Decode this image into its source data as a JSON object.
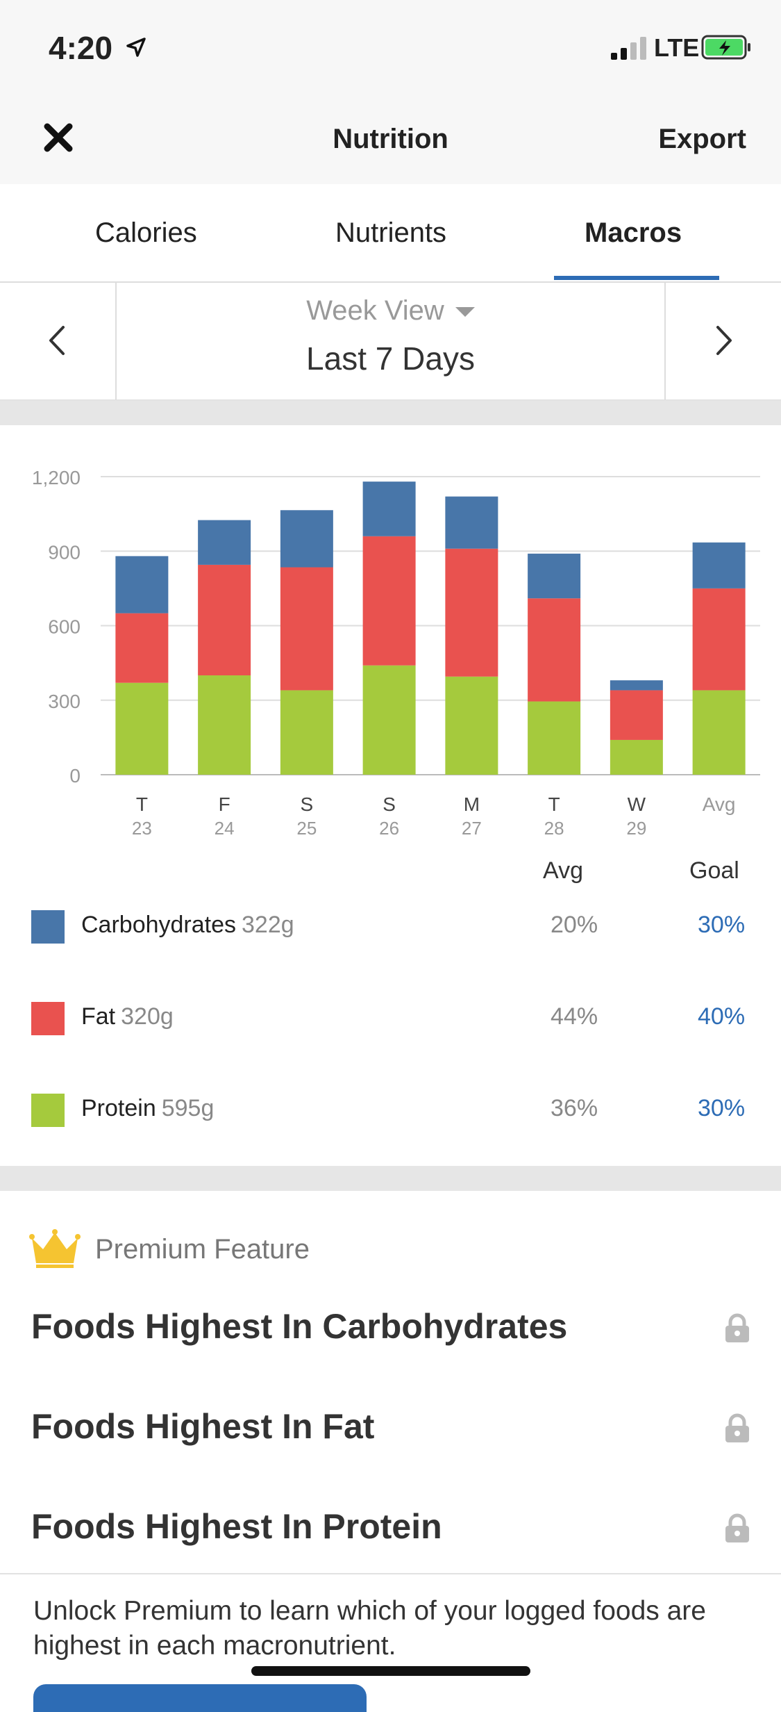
{
  "status_bar": {
    "time": "4:20",
    "network": "LTE"
  },
  "nav": {
    "title": "Nutrition",
    "export_label": "Export"
  },
  "tabs": [
    {
      "label": "Calories",
      "active": false
    },
    {
      "label": "Nutrients",
      "active": false
    },
    {
      "label": "Macros",
      "active": true
    }
  ],
  "range": {
    "view_label": "Week View",
    "range_label": "Last 7 Days"
  },
  "colors": {
    "carbs": "#4876a9",
    "fat": "#e9524f",
    "protein": "#a5ca3d",
    "accent": "#2d6cb5",
    "crown": "#f5c431"
  },
  "chart_data": {
    "type": "bar",
    "stacked": true,
    "categories": [
      {
        "day": "T",
        "date": "23"
      },
      {
        "day": "F",
        "date": "24"
      },
      {
        "day": "S",
        "date": "25"
      },
      {
        "day": "S",
        "date": "26"
      },
      {
        "day": "M",
        "date": "27"
      },
      {
        "day": "T",
        "date": "28"
      },
      {
        "day": "W",
        "date": "29"
      },
      {
        "day": "Avg",
        "date": ""
      }
    ],
    "series": [
      {
        "key": "protein",
        "color": "#a5ca3d",
        "values": [
          370,
          400,
          340,
          440,
          395,
          295,
          140,
          340
        ]
      },
      {
        "key": "fat",
        "color": "#e9524f",
        "values": [
          280,
          445,
          495,
          520,
          515,
          415,
          200,
          410
        ]
      },
      {
        "key": "carbs",
        "color": "#4876a9",
        "values": [
          230,
          180,
          230,
          220,
          210,
          180,
          40,
          185
        ]
      }
    ],
    "ylim": [
      0,
      1200
    ],
    "yticks": [
      "0",
      "300",
      "600",
      "900",
      "1,200"
    ],
    "grid": true
  },
  "legend": {
    "avg_header": "Avg",
    "goal_header": "Goal",
    "items": [
      {
        "name": "Carbohydrates",
        "amount": "322g",
        "avg": "20%",
        "goal": "30%",
        "color": "#4876a9"
      },
      {
        "name": "Fat",
        "amount": "320g",
        "avg": "44%",
        "goal": "40%",
        "color": "#e9524f"
      },
      {
        "name": "Protein",
        "amount": "595g",
        "avg": "36%",
        "goal": "30%",
        "color": "#a5ca3d"
      }
    ]
  },
  "premium": {
    "label": "Premium Feature",
    "rows": [
      {
        "title": "Foods Highest In Carbohydrates",
        "icon": "lock-icon"
      },
      {
        "title": "Foods Highest In Fat",
        "icon": "lock-icon"
      },
      {
        "title": "Foods Highest In Protein",
        "icon": "lock-icon"
      }
    ],
    "unlock_text": "Unlock Premium to learn which of your logged foods are highest in each macronutrient."
  }
}
